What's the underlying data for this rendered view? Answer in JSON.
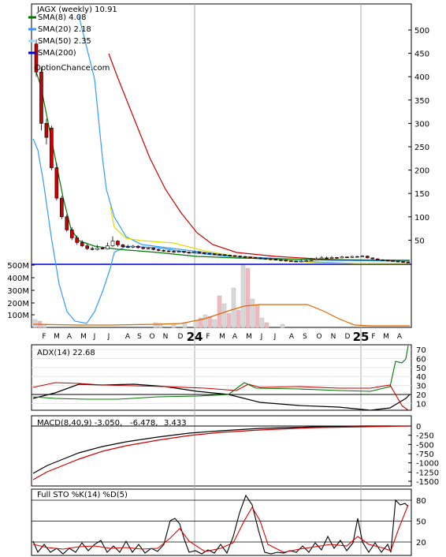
{
  "chart_data": [
    {
      "type": "candlestick",
      "title": "JAGX (weekly) 10.91",
      "watermark": "OptionChance.com",
      "yticks_price": [
        50,
        100,
        150,
        200,
        250,
        300,
        350,
        400,
        450,
        500
      ],
      "yticks_volume": [
        "100M",
        "200M",
        "300M",
        "400M",
        "500M"
      ],
      "x_month_labels": [
        "F",
        "M",
        "A",
        "M",
        "J",
        "J",
        "A",
        "S",
        "O",
        "N",
        "D",
        "24",
        "F",
        "M",
        "A",
        "M",
        "J",
        "J",
        "A",
        "S",
        "O",
        "N",
        "D",
        "25",
        "F",
        "M",
        "A"
      ],
      "legend": [
        {
          "label": "SMA(8) 4.08",
          "color": "#007700"
        },
        {
          "label": "SMA(20) 2.18",
          "color": "#3399ff"
        },
        {
          "label": "SMA(50) 2.35",
          "color": "#a6d8f5"
        },
        {
          "label": "SMA(200)",
          "color": "#0000cc"
        }
      ],
      "candles": [
        {
          "o": 470,
          "c": 410,
          "h": 480,
          "l": 400
        },
        {
          "o": 410,
          "c": 300,
          "h": 420,
          "l": 285
        },
        {
          "o": 300,
          "c": 270,
          "h": 310,
          "l": 255
        },
        {
          "o": 290,
          "c": 205,
          "h": 295,
          "l": 200
        },
        {
          "o": 205,
          "c": 140,
          "h": 215,
          "l": 135
        },
        {
          "o": 140,
          "c": 100,
          "h": 145,
          "l": 95
        },
        {
          "o": 100,
          "c": 72,
          "h": 105,
          "l": 68
        },
        {
          "o": 72,
          "c": 55,
          "h": 78,
          "l": 50
        },
        {
          "o": 55,
          "c": 45,
          "h": 60,
          "l": 40
        },
        {
          "o": 45,
          "c": 38,
          "h": 50,
          "l": 35
        },
        {
          "o": 38,
          "c": 32,
          "h": 42,
          "l": 29
        },
        {
          "o": 32,
          "c": 30,
          "h": 36,
          "l": 28
        },
        {
          "o": 30,
          "c": 33,
          "h": 40,
          "l": 28
        },
        {
          "o": 33,
          "c": 31,
          "h": 36,
          "l": 30
        },
        {
          "o": 31,
          "c": 38,
          "h": 45,
          "l": 30
        },
        {
          "o": 38,
          "c": 48,
          "h": 58,
          "l": 36
        },
        {
          "o": 48,
          "c": 40,
          "h": 50,
          "l": 36
        },
        {
          "o": 40,
          "c": 36,
          "h": 42,
          "l": 33
        },
        {
          "o": 36,
          "c": 35,
          "h": 40,
          "l": 33
        },
        {
          "o": 35,
          "c": 37,
          "h": 40,
          "l": 33
        },
        {
          "o": 37,
          "c": 34,
          "h": 39,
          "l": 32
        },
        {
          "o": 34,
          "c": 32,
          "h": 36,
          "l": 30
        },
        {
          "o": 32,
          "c": 33,
          "h": 35,
          "l": 30
        },
        {
          "o": 33,
          "c": 30,
          "h": 34,
          "l": 28
        },
        {
          "o": 30,
          "c": 28,
          "h": 32,
          "l": 26
        },
        {
          "o": 28,
          "c": 27,
          "h": 30,
          "l": 25
        },
        {
          "o": 27,
          "c": 26,
          "h": 29,
          "l": 24
        },
        {
          "o": 26,
          "c": 25,
          "h": 28,
          "l": 23
        },
        {
          "o": 25,
          "c": 26,
          "h": 28,
          "l": 23
        },
        {
          "o": 26,
          "c": 24,
          "h": 27,
          "l": 22
        },
        {
          "o": 24,
          "c": 23,
          "h": 26,
          "l": 21
        },
        {
          "o": 23,
          "c": 25,
          "h": 27,
          "l": 22
        },
        {
          "o": 25,
          "c": 23,
          "h": 26,
          "l": 21
        },
        {
          "o": 23,
          "c": 22,
          "h": 24,
          "l": 20
        },
        {
          "o": 22,
          "c": 21,
          "h": 23,
          "l": 19
        },
        {
          "o": 21,
          "c": 20,
          "h": 22,
          "l": 18
        },
        {
          "o": 20,
          "c": 19,
          "h": 21,
          "l": 17
        },
        {
          "o": 19,
          "c": 18,
          "h": 20,
          "l": 16
        },
        {
          "o": 18,
          "c": 17,
          "h": 19,
          "l": 15
        },
        {
          "o": 17,
          "c": 16,
          "h": 18,
          "l": 14
        },
        {
          "o": 16,
          "c": 15,
          "h": 17,
          "l": 13
        },
        {
          "o": 15,
          "c": 14,
          "h": 16,
          "l": 12
        },
        {
          "o": 14,
          "c": 13,
          "h": 15,
          "l": 11
        },
        {
          "o": 13,
          "c": 12,
          "h": 14,
          "l": 10
        },
        {
          "o": 12,
          "c": 11,
          "h": 13,
          "l": 9
        },
        {
          "o": 11,
          "c": 10,
          "h": 12,
          "l": 8
        },
        {
          "o": 10,
          "c": 9,
          "h": 11,
          "l": 7
        },
        {
          "o": 9,
          "c": 8,
          "h": 10,
          "l": 6
        },
        {
          "o": 8,
          "c": 7,
          "h": 9,
          "l": 5
        },
        {
          "o": 7,
          "c": 6,
          "h": 8,
          "l": 4
        },
        {
          "o": 6,
          "c": 5,
          "h": 7,
          "l": 3
        },
        {
          "o": 5,
          "c": 4,
          "h": 6,
          "l": 3
        },
        {
          "o": 4,
          "c": 5,
          "h": 8,
          "l": 3
        },
        {
          "o": 5,
          "c": 6,
          "h": 9,
          "l": 4
        },
        {
          "o": 6,
          "c": 8,
          "h": 12,
          "l": 5
        },
        {
          "o": 8,
          "c": 10,
          "h": 14,
          "l": 7
        },
        {
          "o": 10,
          "c": 12,
          "h": 16,
          "l": 9
        },
        {
          "o": 12,
          "c": 11,
          "h": 15,
          "l": 9
        },
        {
          "o": 11,
          "c": 13,
          "h": 16,
          "l": 10
        },
        {
          "o": 13,
          "c": 12,
          "h": 14,
          "l": 10
        },
        {
          "o": 12,
          "c": 14,
          "h": 16,
          "l": 11
        },
        {
          "o": 14,
          "c": 13,
          "h": 15,
          "l": 12
        },
        {
          "o": 13,
          "c": 15,
          "h": 17,
          "l": 12
        },
        {
          "o": 15,
          "c": 14,
          "h": 16,
          "l": 13
        },
        {
          "o": 14,
          "c": 16,
          "h": 18,
          "l": 13
        },
        {
          "o": 16,
          "c": 12,
          "h": 17,
          "l": 11
        },
        {
          "o": 12,
          "c": 10,
          "h": 13,
          "l": 9
        },
        {
          "o": 10,
          "c": 8,
          "h": 11,
          "l": 7
        },
        {
          "o": 8,
          "c": 7,
          "h": 9,
          "l": 6
        },
        {
          "o": 7,
          "c": 6,
          "h": 8,
          "l": 5
        },
        {
          "o": 6,
          "c": 5,
          "h": 7,
          "l": 4
        },
        {
          "o": 5,
          "c": 4,
          "h": 6,
          "l": 3
        },
        {
          "o": 4,
          "c": 3,
          "h": 5,
          "l": 2
        },
        {
          "o": 3,
          "c": 2,
          "h": 4,
          "l": 1
        }
      ]
    },
    {
      "type": "line",
      "title": "ADX(14) 22.68",
      "yticks": [
        10,
        20,
        30,
        40,
        50,
        60,
        70
      ]
    },
    {
      "type": "line",
      "title": "MACD(8,40,9) -3.050,",
      "values_text": [
        "-6.478,",
        "3.433"
      ],
      "yticks": [
        0,
        -250,
        -500,
        -750,
        -1000,
        -1250,
        -1500
      ]
    },
    {
      "type": "line",
      "title": "Full STO %K(14) %D(5)",
      "yticks": [
        20,
        50,
        80
      ]
    }
  ]
}
